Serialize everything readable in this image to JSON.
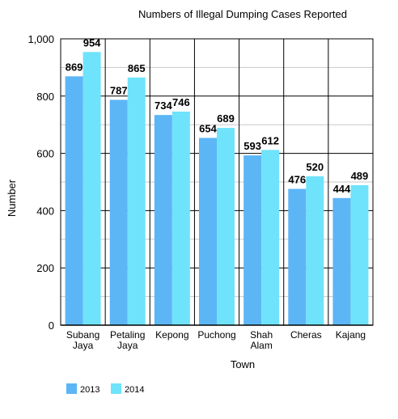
{
  "chart_data": {
    "type": "bar",
    "title": "Numbers of Illegal Dumping Cases Reported",
    "xlabel": "Town",
    "ylabel": "Number",
    "categories": [
      [
        "Subang",
        "Jaya"
      ],
      [
        "Petaling",
        "Jaya"
      ],
      [
        "Kepong"
      ],
      [
        "Puchong"
      ],
      [
        "Shah",
        "Alam"
      ],
      [
        "Cheras"
      ],
      [
        "Kajang"
      ]
    ],
    "series": [
      {
        "name": "2013",
        "color": "#5cb6f5",
        "values": [
          869,
          787,
          734,
          654,
          593,
          476,
          444
        ]
      },
      {
        "name": "2014",
        "color": "#6fe3fb",
        "values": [
          954,
          865,
          746,
          689,
          612,
          520,
          489
        ]
      }
    ],
    "ylim": [
      0,
      1000
    ],
    "yticks": [
      0,
      200,
      400,
      600,
      800,
      1000
    ],
    "ytick_labels": [
      "0",
      "200",
      "400",
      "600",
      "800",
      "1,000"
    ],
    "grid": true,
    "legend": "bottom-left",
    "data_labels": true
  }
}
